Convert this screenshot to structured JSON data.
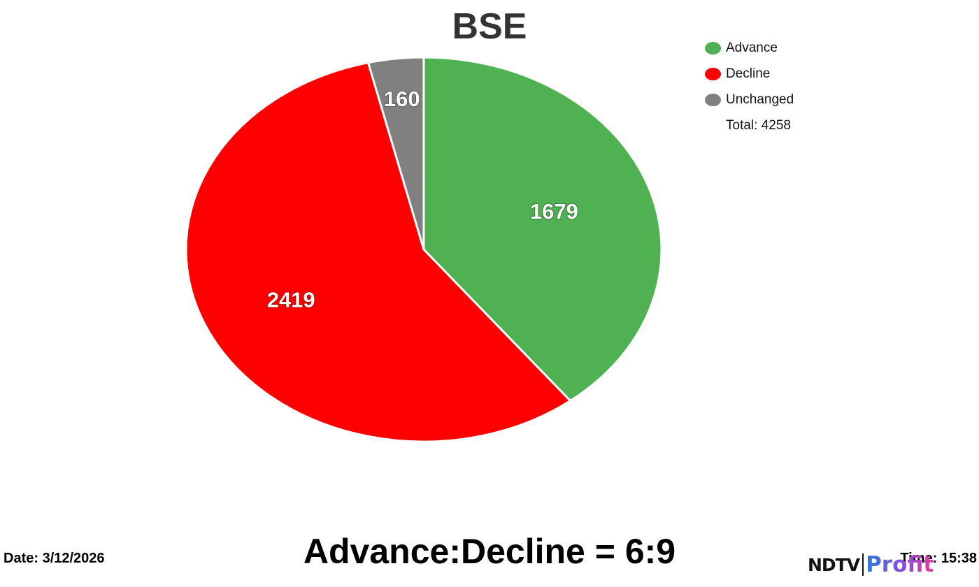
{
  "chart_data": {
    "type": "pie",
    "title": "BSE",
    "categories": [
      "Advance",
      "Decline",
      "Unchanged"
    ],
    "values": [
      1679,
      2419,
      160
    ],
    "colors": [
      "#4fb152",
      "#ff0000",
      "#808080"
    ],
    "legend": {
      "placement": "top-right",
      "total_label": "Total: 4258"
    }
  },
  "footer": {
    "date": "Date: 3/12/2026",
    "ratio": "Advance:Decline = 6:9",
    "time": "Time: 15:38"
  },
  "logo": {
    "ndtv": "NDTV",
    "profit": "Profit"
  }
}
